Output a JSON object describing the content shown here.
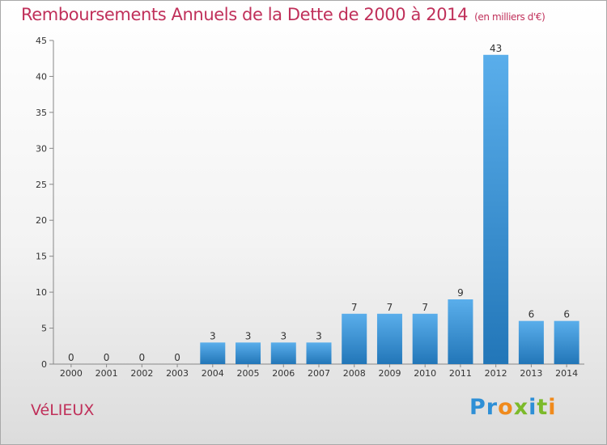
{
  "header": {
    "title": "Remboursements Annuels de la Dette de 2000 à 2014",
    "subtitle": "(en milliers d'€)"
  },
  "commune": "VéLIEUX",
  "logo": {
    "text": "Proxiti",
    "letters": [
      {
        "ch": "P",
        "color": "#2e8fd6"
      },
      {
        "ch": "r",
        "color": "#2e8fd6"
      },
      {
        "ch": "o",
        "color": "#f08a1c"
      },
      {
        "ch": "x",
        "color": "#7cba2a"
      },
      {
        "ch": "i",
        "color": "#2e8fd6"
      },
      {
        "ch": "t",
        "color": "#7cba2a"
      },
      {
        "ch": "i",
        "color": "#f08a1c"
      }
    ]
  },
  "colors": {
    "title": "#c0305a",
    "bar_light": "#5aaeeb",
    "bar_dark": "#2276b8",
    "axis": "#888888"
  },
  "chart_data": {
    "type": "bar",
    "categories": [
      "2000",
      "2001",
      "2002",
      "2003",
      "2004",
      "2005",
      "2006",
      "2007",
      "2008",
      "2009",
      "2010",
      "2011",
      "2012",
      "2013",
      "2014"
    ],
    "values": [
      0,
      0,
      0,
      0,
      3,
      3,
      3,
      3,
      7,
      7,
      7,
      9,
      43,
      6,
      6
    ],
    "data_labels": [
      "0",
      "0",
      "0",
      "0",
      "3",
      "3",
      "3",
      "3",
      "7",
      "7",
      "7",
      "9",
      "43",
      "6",
      "6"
    ],
    "title": "Remboursements Annuels de la Dette de 2000 à 2014",
    "xlabel": "",
    "ylabel": "",
    "ylim": [
      0,
      45
    ],
    "yticks": [
      0,
      5,
      10,
      15,
      20,
      25,
      30,
      35,
      40,
      45
    ],
    "grid": false,
    "legend": "none"
  }
}
